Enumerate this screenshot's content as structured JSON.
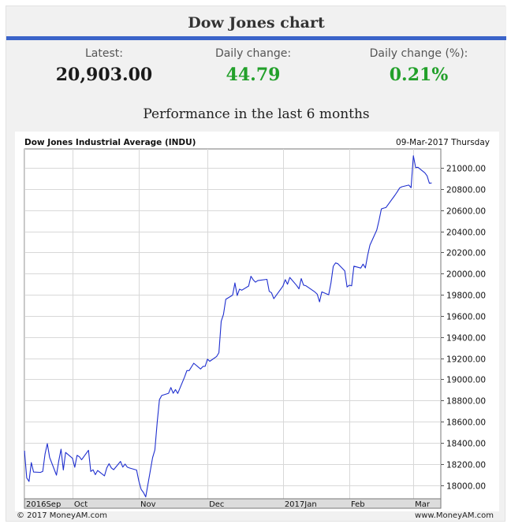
{
  "header": {
    "title": "Dow Jones chart"
  },
  "stats": {
    "latest_label": "Latest:",
    "latest_value": "20,903.00",
    "daily_change_label": "Daily change:",
    "daily_change_value": "44.79",
    "daily_change_pct_label": "Daily change (%):",
    "daily_change_pct_value": "0.21%",
    "value_color": "#1a1a1a",
    "positive_color": "#22a02a"
  },
  "performance_title": "Performance in the last 6 months",
  "footer": {
    "left": "© 2017 MoneyAM.com",
    "right": "www.MoneyAM.com"
  },
  "chart_data": {
    "type": "line",
    "title": "Dow Jones Industrial Average (INDU)",
    "subtitle": "09-Mar-2017 Thursday",
    "line_color": "#1f2fcf",
    "grid": true,
    "ylim": [
      17870,
      21180
    ],
    "yticks": [
      18000,
      18200,
      18400,
      18600,
      18800,
      19000,
      19200,
      19400,
      19600,
      19800,
      20000,
      20200,
      20400,
      20600,
      20800,
      21000
    ],
    "ytick_labels": [
      "18000.00",
      "18200.00",
      "18400.00",
      "18600.00",
      "18800.00",
      "19000.00",
      "19200.00",
      "19400.00",
      "19600.00",
      "19800.00",
      "20000.00",
      "20200.00",
      "20400.00",
      "20600.00",
      "20800.00",
      "21000.00"
    ],
    "x_labels": [
      {
        "label": "2016Sep",
        "date": "2016-09-12"
      },
      {
        "label": "Oct",
        "date": "2016-10-03"
      },
      {
        "label": "Nov",
        "date": "2016-11-01"
      },
      {
        "label": "Dec",
        "date": "2016-12-01"
      },
      {
        "label": "2017Jan",
        "date": "2017-01-03"
      },
      {
        "label": "Feb",
        "date": "2017-02-01"
      },
      {
        "label": "Mar",
        "date": "2017-03-01"
      }
    ],
    "xlim": [
      "2016-09-12",
      "2017-03-13"
    ],
    "series": [
      {
        "x": [
          "2016-09-12",
          "2016-09-13",
          "2016-09-14",
          "2016-09-15",
          "2016-09-16",
          "2016-09-19",
          "2016-09-20",
          "2016-09-21",
          "2016-09-22",
          "2016-09-23",
          "2016-09-26",
          "2016-09-27",
          "2016-09-28",
          "2016-09-29",
          "2016-09-30",
          "2016-10-03",
          "2016-10-04",
          "2016-10-05",
          "2016-10-06",
          "2016-10-07",
          "2016-10-10",
          "2016-10-11",
          "2016-10-12",
          "2016-10-13",
          "2016-10-14",
          "2016-10-17",
          "2016-10-18",
          "2016-10-19",
          "2016-10-20",
          "2016-10-21",
          "2016-10-24",
          "2016-10-25",
          "2016-10-26",
          "2016-10-27",
          "2016-10-28",
          "2016-10-31",
          "2016-11-01",
          "2016-11-02",
          "2016-11-03",
          "2016-11-04",
          "2016-11-07",
          "2016-11-08",
          "2016-11-09",
          "2016-11-10",
          "2016-11-11",
          "2016-11-14",
          "2016-11-15",
          "2016-11-16",
          "2016-11-17",
          "2016-11-18",
          "2016-11-21",
          "2016-11-22",
          "2016-11-23",
          "2016-11-25",
          "2016-11-28",
          "2016-11-29",
          "2016-11-30",
          "2016-12-01",
          "2016-12-02",
          "2016-12-05",
          "2016-12-06",
          "2016-12-07",
          "2016-12-08",
          "2016-12-09",
          "2016-12-12",
          "2016-12-13",
          "2016-12-14",
          "2016-12-15",
          "2016-12-16",
          "2016-12-19",
          "2016-12-20",
          "2016-12-21",
          "2016-12-22",
          "2016-12-23",
          "2016-12-27",
          "2016-12-28",
          "2016-12-29",
          "2016-12-30",
          "2017-01-03",
          "2017-01-04",
          "2017-01-05",
          "2017-01-06",
          "2017-01-09",
          "2017-01-10",
          "2017-01-11",
          "2017-01-12",
          "2017-01-13",
          "2017-01-17",
          "2017-01-18",
          "2017-01-19",
          "2017-01-20",
          "2017-01-23",
          "2017-01-24",
          "2017-01-25",
          "2017-01-26",
          "2017-01-27",
          "2017-01-30",
          "2017-01-31",
          "2017-02-01",
          "2017-02-02",
          "2017-02-03",
          "2017-02-06",
          "2017-02-07",
          "2017-02-08",
          "2017-02-09",
          "2017-02-10",
          "2017-02-13",
          "2017-02-14",
          "2017-02-15",
          "2017-02-16",
          "2017-02-17",
          "2017-02-21",
          "2017-02-22",
          "2017-02-23",
          "2017-02-24",
          "2017-02-27",
          "2017-02-28",
          "2017-03-01",
          "2017-03-02",
          "2017-03-03",
          "2017-03-06",
          "2017-03-07",
          "2017-03-08",
          "2017-03-09"
        ],
        "y": [
          18325,
          18067,
          18034,
          18212,
          18123,
          18120,
          18129,
          18293,
          18392,
          18262,
          18094,
          18228,
          18339,
          18143,
          18308,
          18253,
          18168,
          18281,
          18268,
          18240,
          18329,
          18129,
          18144,
          18098,
          18138,
          18087,
          18162,
          18202,
          18162,
          18145,
          18223,
          18170,
          18199,
          18169,
          18161,
          18142,
          18037,
          17959,
          17930,
          17888,
          18259,
          18332,
          18590,
          18808,
          18847,
          18868,
          18923,
          18868,
          18903,
          18867,
          19023,
          19083,
          19083,
          19152,
          19098,
          19122,
          19124,
          19191,
          19171,
          19216,
          19252,
          19549,
          19615,
          19757,
          19797,
          19912,
          19793,
          19853,
          19843,
          19883,
          19975,
          19942,
          19919,
          19934,
          19946,
          19833,
          19819,
          19763,
          19882,
          19943,
          19900,
          19964,
          19888,
          19856,
          19954,
          19892,
          19886,
          19826,
          19805,
          19733,
          19828,
          19800,
          19913,
          20069,
          20101,
          20094,
          20026,
          19874,
          19890,
          19885,
          20071,
          20053,
          20090,
          20054,
          20173,
          20270,
          20413,
          20505,
          20612,
          20620,
          20625,
          20744,
          20776,
          20811,
          20822,
          20838,
          20813,
          21115,
          21003,
          21006,
          20954,
          20925,
          20855,
          20858
        ]
      }
    ]
  }
}
